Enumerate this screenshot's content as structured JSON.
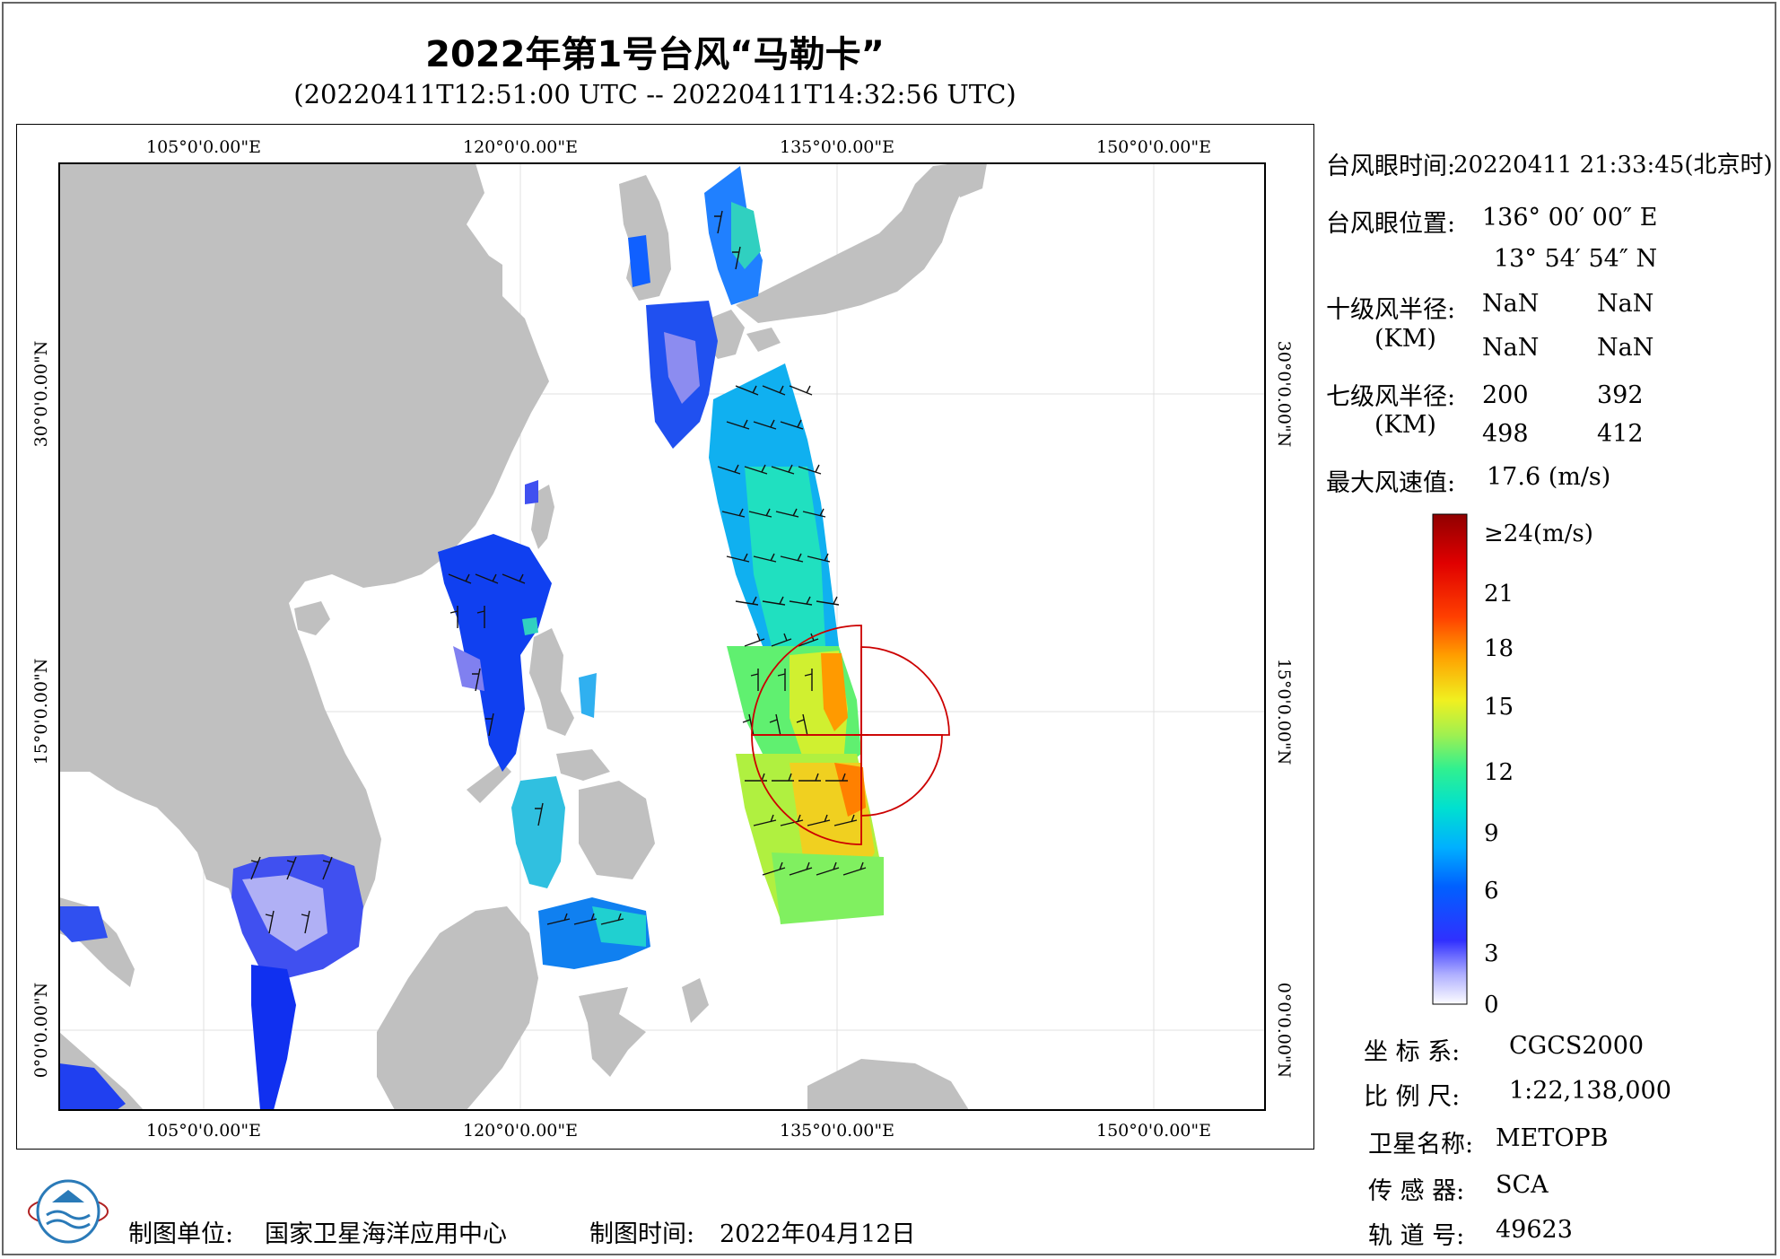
{
  "title": "2022年第1号台风“马勒卡”",
  "subtitle": "(20220411T12:51:00 UTC -- 20220411T14:32:56 UTC)",
  "map": {
    "top_lon_labels": [
      "105°0'0.00\"E",
      "120°0'0.00\"E",
      "135°0'0.00\"E",
      "150°0'0.00\"E"
    ],
    "bottom_lon_labels": [
      "105°0'0.00\"E",
      "120°0'0.00\"E",
      "135°0'0.00\"E",
      "150°0'0.00\"E"
    ],
    "left_lat_labels": [
      "30°0'0.00\"N",
      "15°0'0.00\"N",
      "0°0'0.00\"N"
    ],
    "right_lat_labels": [
      "30°0'0.00\"N",
      "15°0'0.00\"N",
      "0°0'0.00\"N"
    ],
    "land_color": "#c0c0c0",
    "sea_color": "#ffffff",
    "grid_color": "#e0e0e0",
    "wind_radius_color": "#cc0000",
    "typhoon_eye": {
      "lon": 136.0,
      "lat": 13.915
    }
  },
  "info": {
    "eye_time_label": "台风眼时间:",
    "eye_time_value": "20220411 21:33:45(北京时)",
    "eye_pos_label": "台风眼位置:",
    "eye_lon": "136° 00′ 00″ E",
    "eye_lat": "13° 54′ 54″ N",
    "r10_label": "十级风半径:",
    "r10_unit": "(KM)",
    "r10_values": [
      "NaN",
      "NaN",
      "NaN",
      "NaN"
    ],
    "r7_label": "七级风半径:",
    "r7_unit": "(KM)",
    "r7_values": [
      "200",
      "392",
      "498",
      "412"
    ],
    "max_wind_label": "最大风速值:",
    "max_wind_value": "17.6 (m/s)"
  },
  "colorbar": {
    "labels": [
      "≥24(m/s)",
      "21",
      "18",
      "15",
      "12",
      "9",
      "6",
      "3",
      "0"
    ],
    "colors": [
      "#fdfdff",
      "#b0b0ff",
      "#3030ff",
      "#0060ff",
      "#00b0ff",
      "#00e0d0",
      "#30f090",
      "#a0f050",
      "#f0f020",
      "#ffa000",
      "#ff4000",
      "#e00000",
      "#900000"
    ]
  },
  "metadata": {
    "crs_label": "坐 标 系:",
    "crs_value": "CGCS2000",
    "scale_label": "比 例 尺:",
    "scale_value": "1:22,138,000",
    "satellite_label": "卫星名称:",
    "satellite_value": "METOPB",
    "sensor_label": "传 感 器:",
    "sensor_value": "SCA",
    "orbit_label": "轨 道 号:",
    "orbit_value": "49623"
  },
  "footer": {
    "org_label": "制图单位:",
    "org_value": "国家卫星海洋应用中心",
    "date_label": "制图时间:",
    "date_value": "2022年04月12日"
  }
}
